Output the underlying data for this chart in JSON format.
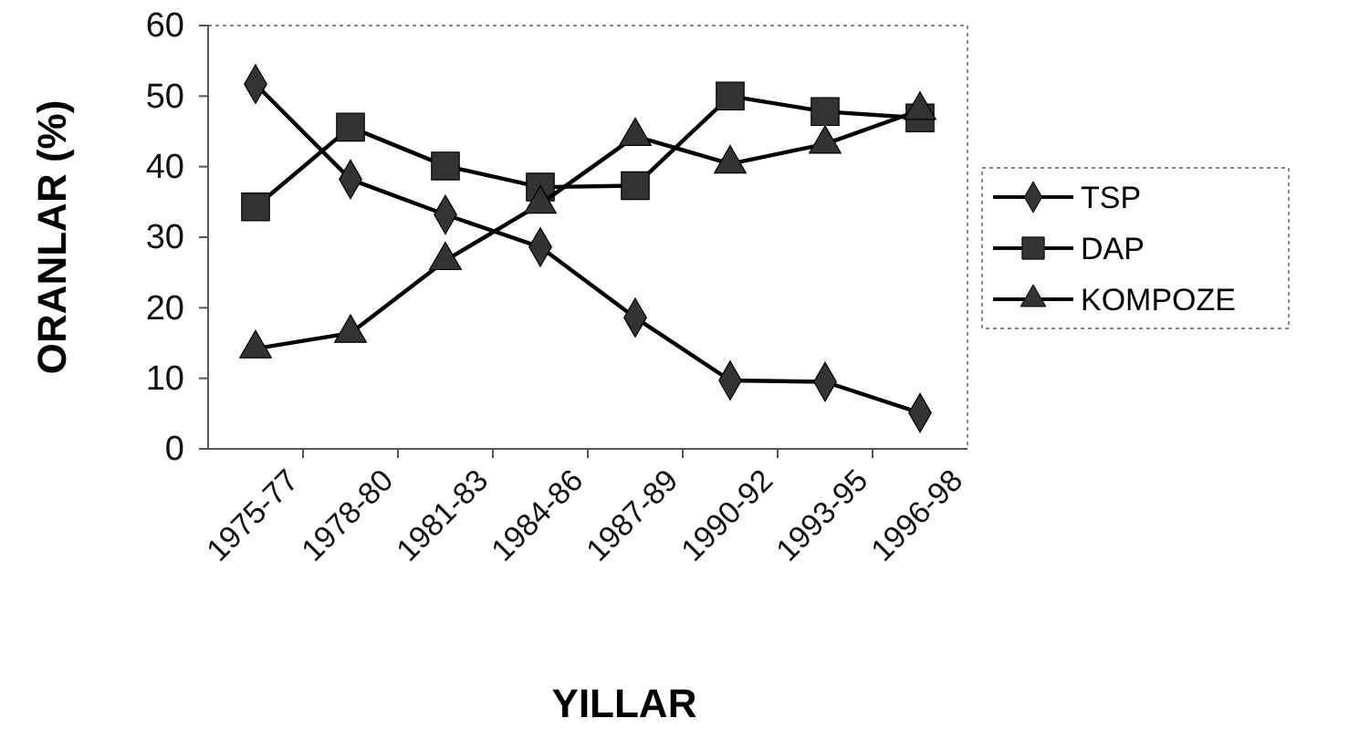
{
  "chart_data": {
    "type": "line",
    "xlabel": "YILLAR",
    "ylabel": "ORANLAR (%)",
    "categories": [
      "1975-77",
      "1978-80",
      "1981-83",
      "1984-86",
      "1987-89",
      "1990-92",
      "1993-95",
      "1996-98"
    ],
    "series": [
      {
        "name": "TSP",
        "color": "#333333",
        "marker": "diamond",
        "values": [
          51.7,
          38.2,
          33.2,
          28.6,
          18.6,
          9.7,
          9.5,
          5.1
        ]
      },
      {
        "name": "DAP",
        "color": "#333333",
        "marker": "square",
        "values": [
          34.3,
          45.6,
          40.1,
          37.1,
          37.3,
          50,
          47.8,
          46.9
        ]
      },
      {
        "name": "KOMPOZE",
        "color": "#333333",
        "marker": "triangle",
        "values": [
          14.2,
          16.4,
          26.7,
          34.7,
          44.3,
          40.4,
          43.2,
          48
        ]
      }
    ],
    "ylim": [
      0,
      60
    ],
    "yticks": [
      0,
      10,
      20,
      30,
      40,
      50,
      60
    ],
    "grid": false,
    "legend": "right"
  }
}
